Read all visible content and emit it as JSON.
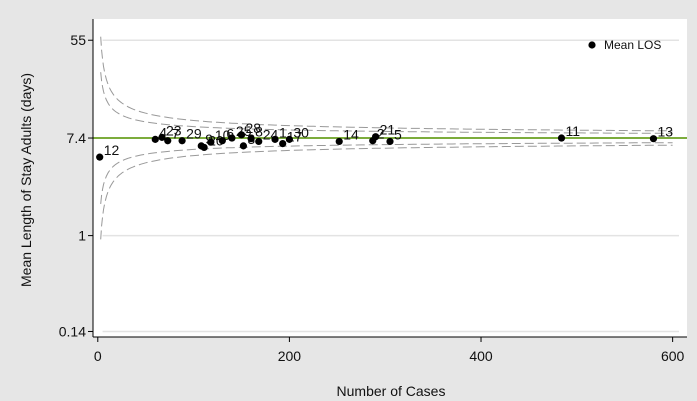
{
  "chart_data": {
    "type": "scatter",
    "xlabel": "Number of Cases",
    "ylabel": "Mean Length of Stay Adults (days)",
    "xlim": [
      -5,
      615
    ],
    "ylim": [
      0.125,
      85
    ],
    "yscale": "log",
    "x_ticks": [
      0,
      200,
      400,
      600
    ],
    "x_tick_labels": [
      "0",
      "200",
      "400",
      "600"
    ],
    "y_ticks": [
      0.14,
      1,
      7.4,
      55
    ],
    "y_tick_labels": [
      "0.14",
      "1",
      "7.4",
      "55"
    ],
    "grid": true,
    "overall_mean": 7.4,
    "legend": {
      "position": "top-right",
      "entries": [
        "Mean LOS"
      ]
    },
    "series": [
      {
        "name": "Mean LOS",
        "points": [
          {
            "label": "12",
            "x": 2,
            "y": 5.0
          },
          {
            "label": "4",
            "x": 60,
            "y": 7.2
          },
          {
            "label": "23",
            "x": 67,
            "y": 7.5
          },
          {
            "label": "7",
            "x": 73,
            "y": 7.0
          },
          {
            "label": "29",
            "x": 88,
            "y": 7.0
          },
          {
            "label": "9",
            "x": 108,
            "y": 6.3
          },
          {
            "label": "20",
            "x": 111,
            "y": 6.1
          },
          {
            "label": "10",
            "x": 118,
            "y": 6.8
          },
          {
            "label": "6",
            "x": 130,
            "y": 7.0
          },
          {
            "label": "25",
            "x": 140,
            "y": 7.4
          },
          {
            "label": "28",
            "x": 150,
            "y": 7.9
          },
          {
            "label": "3",
            "x": 152,
            "y": 6.3
          },
          {
            "label": "8",
            "x": 160,
            "y": 7.3
          },
          {
            "label": "24",
            "x": 168,
            "y": 6.9
          },
          {
            "label": "1",
            "x": 185,
            "y": 7.2
          },
          {
            "label": "17",
            "x": 193,
            "y": 6.6
          },
          {
            "label": "30",
            "x": 200,
            "y": 7.2
          },
          {
            "label": "14",
            "x": 252,
            "y": 6.9
          },
          {
            "label": "2",
            "x": 287,
            "y": 7.0
          },
          {
            "label": "21",
            "x": 290,
            "y": 7.6
          },
          {
            "label": "5",
            "x": 305,
            "y": 6.9
          },
          {
            "label": "11",
            "x": 484,
            "y": 7.4
          },
          {
            "label": "13",
            "x": 580,
            "y": 7.3
          }
        ]
      }
    ]
  }
}
